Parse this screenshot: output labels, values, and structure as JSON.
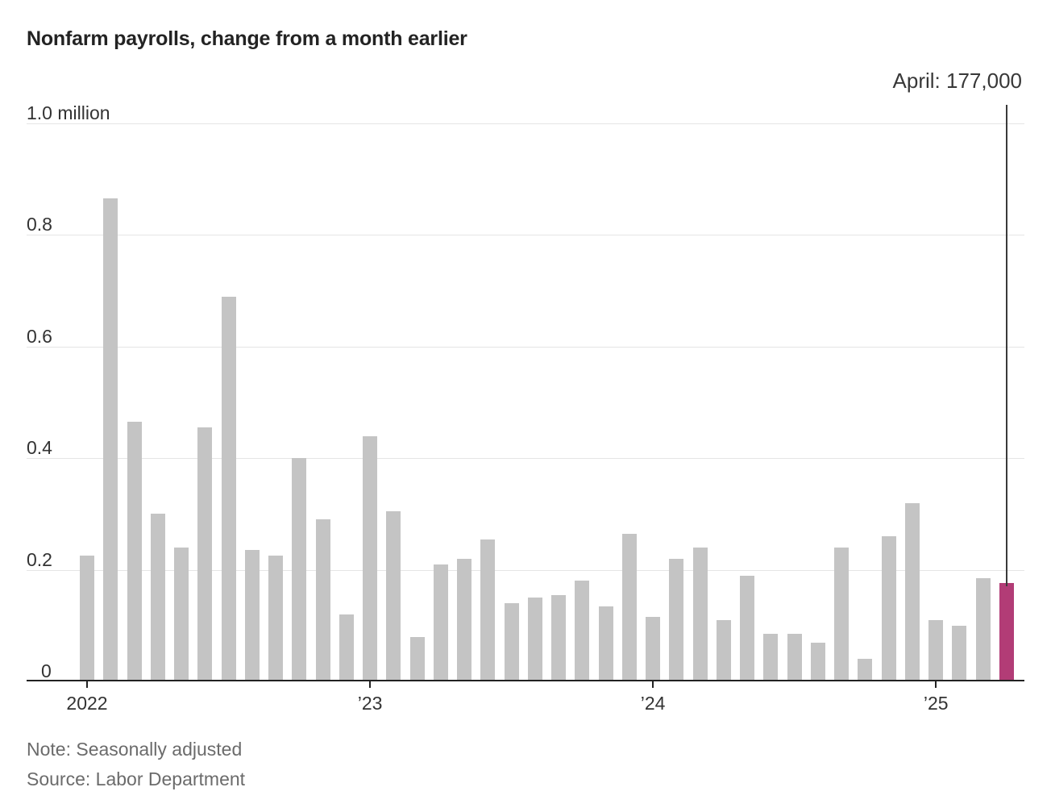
{
  "title": "Nonfarm payrolls, change from a month earlier",
  "annotation": {
    "label": "April: 177,000"
  },
  "y_axis": {
    "labels": [
      {
        "text": "1.0 million",
        "value": 1000
      },
      {
        "text": "0.8",
        "value": 800
      },
      {
        "text": "0.6",
        "value": 600
      },
      {
        "text": "0.4",
        "value": 400
      },
      {
        "text": "0.2",
        "value": 200
      },
      {
        "text": "0",
        "value": 0
      }
    ]
  },
  "x_axis": {
    "ticks": [
      {
        "label": "2022",
        "month_index": 0
      },
      {
        "label": "’23",
        "month_index": 12
      },
      {
        "label": "’24",
        "month_index": 24
      },
      {
        "label": "’25",
        "month_index": 36
      }
    ]
  },
  "footer": {
    "note": "Note: Seasonally adjusted",
    "source": "Source: Labor Department"
  },
  "colors": {
    "bar": "#c4c4c4",
    "highlight": "#b23c76",
    "gridline": "#e5e5e5",
    "axis": "#222222",
    "annotation_line": "#3a3a3a"
  },
  "chart_data": {
    "type": "bar",
    "title": "Nonfarm payrolls, change from a month earlier",
    "unit": "thousands of jobs, change from a month earlier",
    "ylabel": "",
    "xlabel": "",
    "ylim_thousands": [
      0,
      1000
    ],
    "gridline_values_thousands": [
      1000,
      800,
      600,
      400,
      200
    ],
    "grid": true,
    "x": [
      "Jan 2022",
      "Feb 2022",
      "Mar 2022",
      "Apr 2022",
      "May 2022",
      "Jun 2022",
      "Jul 2022",
      "Aug 2022",
      "Sep 2022",
      "Oct 2022",
      "Nov 2022",
      "Dec 2022",
      "Jan 2023",
      "Feb 2023",
      "Mar 2023",
      "Apr 2023",
      "May 2023",
      "Jun 2023",
      "Jul 2023",
      "Aug 2023",
      "Sep 2023",
      "Oct 2023",
      "Nov 2023",
      "Dec 2023",
      "Jan 2024",
      "Feb 2024",
      "Mar 2024",
      "Apr 2024",
      "May 2024",
      "Jun 2024",
      "Jul 2024",
      "Aug 2024",
      "Sep 2024",
      "Oct 2024",
      "Nov 2024",
      "Dec 2024",
      "Jan 2025",
      "Feb 2025",
      "Mar 2025",
      "Apr 2025"
    ],
    "values_thousands": [
      225,
      865,
      465,
      300,
      240,
      455,
      690,
      235,
      225,
      400,
      290,
      120,
      440,
      305,
      80,
      210,
      220,
      255,
      140,
      150,
      155,
      180,
      135,
      265,
      115,
      220,
      240,
      110,
      190,
      85,
      85,
      70,
      240,
      40,
      260,
      320,
      110,
      100,
      185,
      177
    ],
    "highlight_index": 39,
    "highlight_value_thousands": 177,
    "annotation": "April: 177,000"
  }
}
